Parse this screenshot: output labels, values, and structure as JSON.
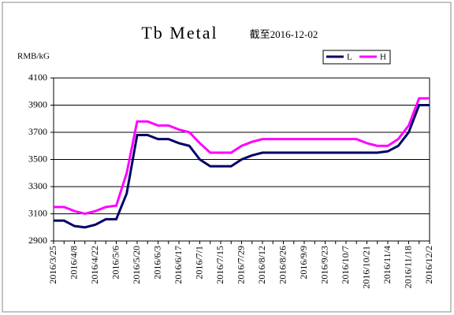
{
  "chart_data": {
    "type": "line",
    "title": "Tb Metal",
    "subtitle": "截至2016-12-02",
    "y_label": "RMB/kG",
    "categories": [
      "2016/3/25",
      null,
      "2016/4/8",
      null,
      "2016/4/22",
      null,
      "2016/5/6",
      null,
      "2016/5/20",
      null,
      "2016/6/3",
      null,
      "2016/6/17",
      null,
      "2016/7/1",
      null,
      "2016/7/15",
      null,
      "2016/7/29",
      null,
      "2016/8/12",
      null,
      "2016/8/26",
      null,
      "2016/9/9",
      null,
      "2016/9/23",
      null,
      "2016/10/7",
      null,
      "2016/10/21",
      null,
      "2016/11/4",
      null,
      "2016/11/18",
      null,
      "2016/12/2"
    ],
    "series": [
      {
        "name": "L",
        "color": "#000066",
        "values": [
          3050,
          3050,
          3010,
          3000,
          3020,
          3060,
          3060,
          3250,
          3680,
          3680,
          3650,
          3650,
          3620,
          3600,
          3500,
          3450,
          3450,
          3450,
          3500,
          3530,
          3550,
          3550,
          3550,
          3550,
          3550,
          3550,
          3550,
          3550,
          3550,
          3550,
          3550,
          3550,
          3560,
          3600,
          3700,
          3900,
          3900
        ]
      },
      {
        "name": "H",
        "color": "#ff00ff",
        "values": [
          3150,
          3150,
          3120,
          3100,
          3120,
          3150,
          3160,
          3400,
          3780,
          3780,
          3750,
          3750,
          3720,
          3700,
          3620,
          3550,
          3550,
          3550,
          3600,
          3630,
          3650,
          3650,
          3650,
          3650,
          3650,
          3650,
          3650,
          3650,
          3650,
          3650,
          3620,
          3600,
          3600,
          3650,
          3750,
          3950,
          3950
        ]
      }
    ],
    "ylim": [
      2900,
      4100
    ],
    "yticks": [
      2900,
      3100,
      3300,
      3500,
      3700,
      3900,
      4100
    ],
    "grid": true,
    "legend": "top-right"
  }
}
